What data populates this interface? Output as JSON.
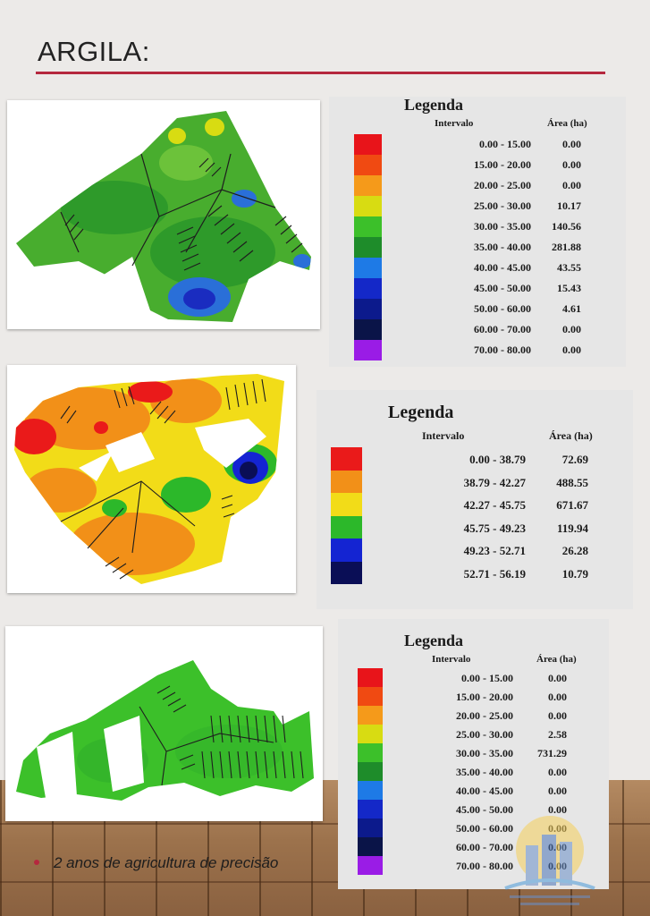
{
  "page": {
    "title": "ARGILA:"
  },
  "legends": [
    {
      "title": "Legenda",
      "col_interval": "Intervalo",
      "col_area": "Área (ha)",
      "rows": [
        {
          "interval": "0.00 - 15.00",
          "area": "0.00",
          "color": "#e8141a"
        },
        {
          "interval": "15.00 - 20.00",
          "area": "0.00",
          "color": "#f04a12"
        },
        {
          "interval": "20.00 - 25.00",
          "area": "0.00",
          "color": "#f59a1a"
        },
        {
          "interval": "25.00 - 30.00",
          "area": "10.17",
          "color": "#d8dc12"
        },
        {
          "interval": "30.00 - 35.00",
          "area": "140.56",
          "color": "#3cc02a"
        },
        {
          "interval": "35.00 - 40.00",
          "area": "281.88",
          "color": "#1e8c2a"
        },
        {
          "interval": "40.00 - 45.00",
          "area": "43.55",
          "color": "#1e7ae6"
        },
        {
          "interval": "45.00 - 50.00",
          "area": "15.43",
          "color": "#1428c8"
        },
        {
          "interval": "50.00 - 60.00",
          "area": "4.61",
          "color": "#0c1a8c"
        },
        {
          "interval": "60.00 - 70.00",
          "area": "0.00",
          "color": "#0a1448"
        },
        {
          "interval": "70.00 - 80.00",
          "area": "0.00",
          "color": "#9a1ce6"
        }
      ]
    },
    {
      "title": "Legenda",
      "col_interval": "Intervalo",
      "col_area": "Área (ha)",
      "rows": [
        {
          "interval": "0.00 - 38.79",
          "area": "72.69",
          "color": "#ea1a1a"
        },
        {
          "interval": "38.79 - 42.27",
          "area": "488.55",
          "color": "#f29018"
        },
        {
          "interval": "42.27 - 45.75",
          "area": "671.67",
          "color": "#f2dc18"
        },
        {
          "interval": "45.75 - 49.23",
          "area": "119.94",
          "color": "#2cb82a"
        },
        {
          "interval": "49.23 - 52.71",
          "area": "26.28",
          "color": "#1424d2"
        },
        {
          "interval": "52.71 - 56.19",
          "area": "10.79",
          "color": "#0a0e56"
        }
      ]
    },
    {
      "title": "Legenda",
      "col_interval": "Intervalo",
      "col_area": "Área (ha)",
      "rows": [
        {
          "interval": "0.00 - 15.00",
          "area": "0.00",
          "color": "#e8141a"
        },
        {
          "interval": "15.00 - 20.00",
          "area": "0.00",
          "color": "#f04a12"
        },
        {
          "interval": "20.00 - 25.00",
          "area": "0.00",
          "color": "#f59a1a"
        },
        {
          "interval": "25.00 - 30.00",
          "area": "2.58",
          "color": "#d8dc12"
        },
        {
          "interval": "30.00 - 35.00",
          "area": "731.29",
          "color": "#3cc02a"
        },
        {
          "interval": "35.00 - 40.00",
          "area": "0.00",
          "color": "#1e8c2a"
        },
        {
          "interval": "40.00 - 45.00",
          "area": "0.00",
          "color": "#1e7ae6"
        },
        {
          "interval": "45.00 - 50.00",
          "area": "0.00",
          "color": "#1428c8"
        },
        {
          "interval": "50.00 - 60.00",
          "area": "0.00",
          "color": "#0c1a8c"
        },
        {
          "interval": "60.00 - 70.00",
          "area": "0.00",
          "color": "#0a1448"
        },
        {
          "interval": "70.00 - 80.00",
          "area": "0.00",
          "color": "#9a1ce6"
        }
      ]
    }
  ],
  "bullet": {
    "text": "2 anos de agricultura de precisão"
  }
}
